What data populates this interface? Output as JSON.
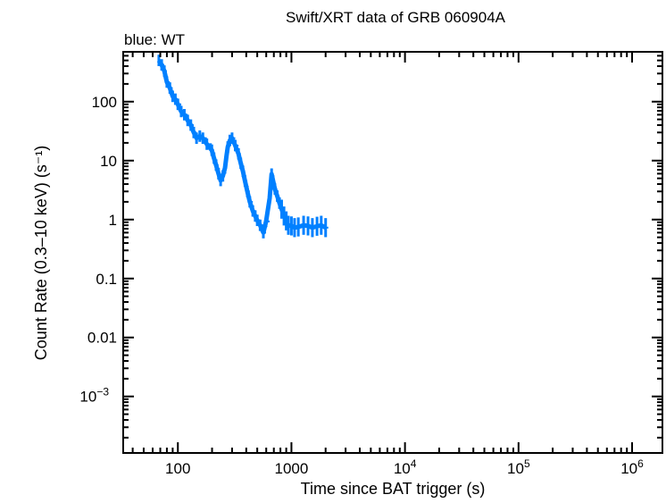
{
  "chart_data": {
    "type": "scatter",
    "title": "Swift/XRT data of GRB 060904A",
    "subtitle": "blue: WT",
    "xlabel": "Time since BAT trigger (s)",
    "ylabel": "Count Rate (0.3–10 keV) (s⁻¹)",
    "xscale": "log",
    "yscale": "log",
    "xlim": [
      33,
      1850000
    ],
    "ylim": [
      0.00011,
      700
    ],
    "grid": false,
    "x_ticks": [
      {
        "value": 100,
        "label": "100"
      },
      {
        "value": 1000,
        "label": "1000"
      },
      {
        "value": 10000,
        "label": "10",
        "sup": "4"
      },
      {
        "value": 100000,
        "label": "10",
        "sup": "5"
      },
      {
        "value": 1000000,
        "label": "10",
        "sup": "6"
      }
    ],
    "y_ticks": [
      {
        "value": 100,
        "label": "100"
      },
      {
        "value": 10,
        "label": "10"
      },
      {
        "value": 1,
        "label": "1"
      },
      {
        "value": 0.1,
        "label": "0.1"
      },
      {
        "value": 0.01,
        "label": "0.01"
      },
      {
        "value": 0.001,
        "label": "10",
        "sup": "−3"
      }
    ],
    "series": [
      {
        "mode": "WT",
        "color": "#0080ff",
        "points": [
          [
            68,
            500
          ],
          [
            72,
            420
          ],
          [
            76,
            330
          ],
          [
            80,
            215
          ],
          [
            85,
            170
          ],
          [
            90,
            123
          ],
          [
            95,
            110
          ],
          [
            100,
            90
          ],
          [
            107,
            68
          ],
          [
            114,
            60
          ],
          [
            122,
            48
          ],
          [
            130,
            40
          ],
          [
            138,
            30
          ],
          [
            146,
            24
          ],
          [
            156,
            26
          ],
          [
            166,
            24
          ],
          [
            180,
            19
          ],
          [
            199,
            15
          ],
          [
            208,
            11
          ],
          [
            217,
            8.4
          ],
          [
            228,
            6
          ],
          [
            238,
            4.6
          ],
          [
            249,
            5.5
          ],
          [
            260,
            7.5
          ],
          [
            268,
            12
          ],
          [
            275,
            17
          ],
          [
            287,
            22
          ],
          [
            300,
            24
          ],
          [
            320,
            18
          ],
          [
            342,
            13
          ],
          [
            358,
            9
          ],
          [
            374,
            6.6
          ],
          [
            390,
            4.5
          ],
          [
            409,
            3.0
          ],
          [
            430,
            2.0
          ],
          [
            457,
            1.4
          ],
          [
            480,
            1.15
          ],
          [
            500,
            0.97
          ],
          [
            530,
            0.8
          ],
          [
            566,
            0.6
          ],
          [
            598,
            0.93
          ],
          [
            643,
            2.3
          ],
          [
            669,
            5.9
          ],
          [
            690,
            4.5
          ],
          [
            715,
            3.3
          ],
          [
            750,
            2.5
          ],
          [
            785,
            1.9
          ],
          [
            820,
            1.5
          ],
          [
            860,
            1.15
          ],
          [
            900,
            0.95
          ],
          [
            940,
            0.8
          ],
          [
            1000,
            0.78
          ],
          [
            1065,
            0.73
          ],
          [
            1150,
            0.75
          ],
          [
            1280,
            0.8
          ],
          [
            1400,
            0.78
          ],
          [
            1530,
            0.73
          ],
          [
            1680,
            0.77
          ],
          [
            1830,
            0.8
          ],
          [
            2000,
            0.73
          ]
        ]
      }
    ]
  }
}
